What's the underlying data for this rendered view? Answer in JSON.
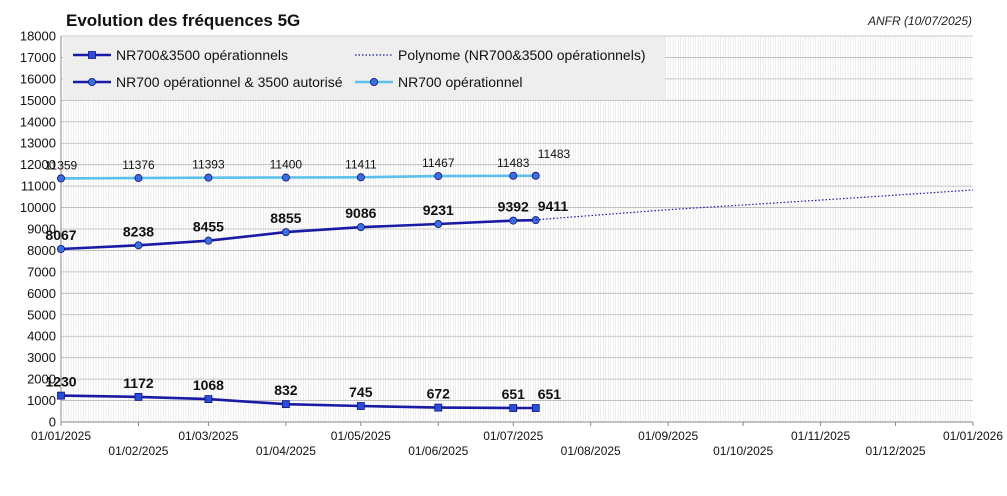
{
  "chart_data": {
    "type": "line",
    "title": "Evolution des fréquences 5G",
    "source": "ANFR (10/07/2025)",
    "xlabel": "",
    "ylabel": "",
    "ylim": [
      0,
      18000
    ],
    "yticks": [
      0,
      1000,
      2000,
      3000,
      4000,
      5000,
      6000,
      7000,
      8000,
      9000,
      10000,
      11000,
      12000,
      13000,
      14000,
      15000,
      16000,
      17000,
      18000
    ],
    "xlim": [
      "2025-01-01",
      "2026-01-01"
    ],
    "xticks": [
      "01/01/2025",
      "01/02/2025",
      "01/03/2025",
      "01/04/2025",
      "01/05/2025",
      "01/06/2025",
      "01/07/2025",
      "01/08/2025",
      "01/09/2025",
      "01/10/2025",
      "01/11/2025",
      "01/12/2025",
      "01/01/2026"
    ],
    "grid": true,
    "legend": {
      "placement": "top-left",
      "entries": [
        "NR700&3500 opérationnels",
        "Polynome (NR700&3500 opérationnels)",
        "NR700 opérationnel & 3500 autorisé",
        "NR700 opérationnel"
      ]
    },
    "series": [
      {
        "name": "NR700 opérationnel",
        "color": "#5bc0eb",
        "marker": "circle",
        "x": [
          "2025-01-01",
          "2025-02-01",
          "2025-03-01",
          "2025-04-01",
          "2025-05-01",
          "2025-06-01",
          "2025-07-01",
          "2025-07-10"
        ],
        "values": [
          11359,
          11376,
          11393,
          11400,
          11411,
          11467,
          11483,
          11483
        ],
        "labels": [
          "11359",
          "11376",
          "11393",
          "11400",
          "11411",
          "11467",
          "11483",
          "11483"
        ]
      },
      {
        "name": "NR700 opérationnel & 3500 autorisé",
        "color": "#1a1aa6",
        "marker": "circle",
        "x": [
          "2025-01-01",
          "2025-02-01",
          "2025-03-01",
          "2025-04-01",
          "2025-05-01",
          "2025-06-01",
          "2025-07-01",
          "2025-07-10"
        ],
        "values": [
          8067,
          8238,
          8455,
          8855,
          9086,
          9231,
          9392,
          9411
        ],
        "labels": [
          "8067",
          "8238",
          "8455",
          "8855",
          "9086",
          "9231",
          "9392",
          "9411"
        ]
      },
      {
        "name": "NR700&3500 opérationnels",
        "color": "#1a1aa6",
        "marker": "square",
        "x": [
          "2025-01-01",
          "2025-02-01",
          "2025-03-01",
          "2025-04-01",
          "2025-05-01",
          "2025-06-01",
          "2025-07-01",
          "2025-07-10"
        ],
        "values": [
          1230,
          1172,
          1068,
          832,
          745,
          672,
          651,
          651
        ],
        "labels": [
          "1230",
          "1172",
          "1068",
          "832",
          "745",
          "672",
          "651",
          "651"
        ]
      },
      {
        "name": "Polynome (NR700&3500 opérationnels)",
        "color": "#1a1aa6",
        "style": "dotted",
        "x": [
          "2025-07-10",
          "2025-09-01",
          "2025-11-01",
          "2026-01-01"
        ],
        "values": [
          9430,
          9900,
          10350,
          10820
        ]
      }
    ]
  }
}
